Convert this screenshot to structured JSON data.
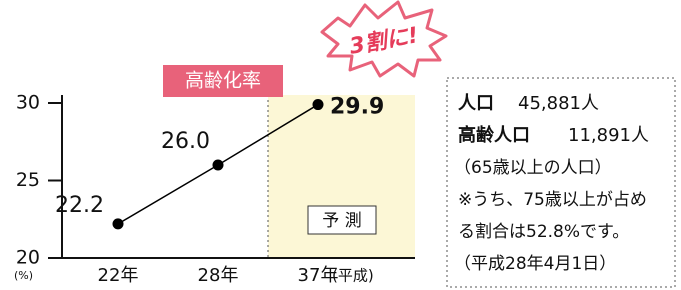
{
  "chart_data": {
    "type": "line",
    "categories": [
      "22年",
      "28年",
      "37年"
    ],
    "series": [
      {
        "name": "高齢化率",
        "color": "#000000",
        "values": [
          22.2,
          26.0,
          29.9
        ],
        "value_labels": [
          "22.2",
          "26.0",
          "29.9"
        ]
      }
    ],
    "ylim": [
      20,
      30
    ],
    "yticks": [
      20,
      25,
      30
    ],
    "y_unit": "(%)",
    "x_unit": "(平成)",
    "callout": "3割に!",
    "forecast_label": "予 測"
  },
  "info": {
    "population": {
      "label": "人口",
      "value": "45,881人"
    },
    "elderly": {
      "label": "高齢人口",
      "value": "11,891人"
    },
    "notes": [
      "（65歳以上の人口）",
      "※うち、75歳以上が占め",
      "る割合は52.8%です。",
      "（平成28年4月1日）"
    ]
  }
}
